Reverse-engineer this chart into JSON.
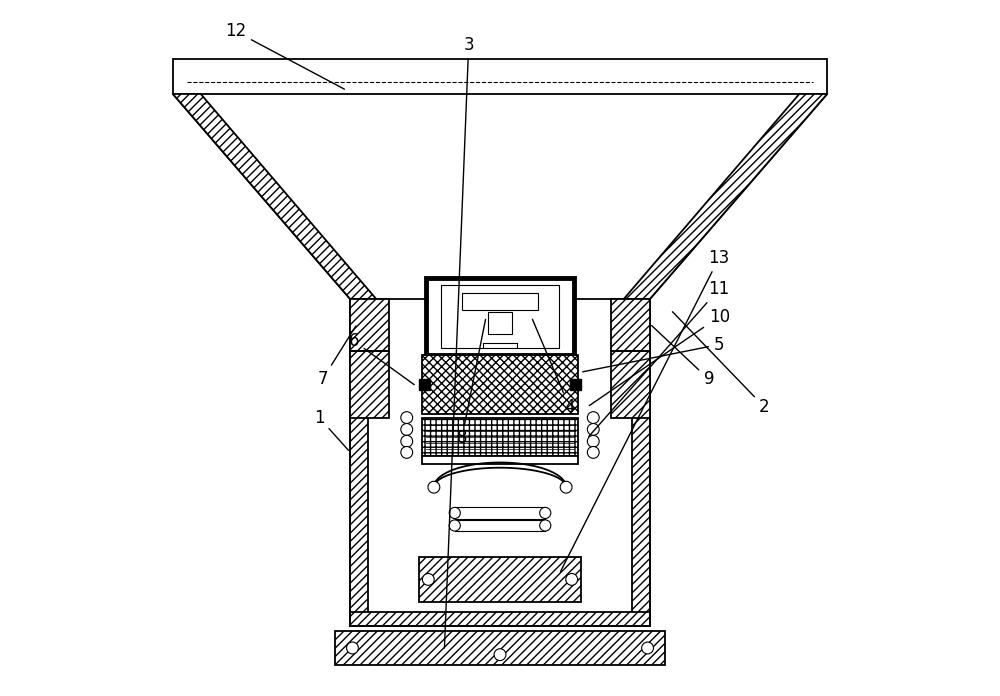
{
  "bg_color": "#ffffff",
  "line_color": "#000000",
  "figsize": [
    10.0,
    6.96
  ],
  "labels_info": {
    "12": [
      0.12,
      0.955,
      0.28,
      0.87
    ],
    "2": [
      0.88,
      0.415,
      0.745,
      0.555
    ],
    "8": [
      0.445,
      0.37,
      0.48,
      0.545
    ],
    "4": [
      0.6,
      0.415,
      0.545,
      0.545
    ],
    "7": [
      0.245,
      0.455,
      0.295,
      0.535
    ],
    "9": [
      0.8,
      0.455,
      0.715,
      0.535
    ],
    "5": [
      0.815,
      0.505,
      0.615,
      0.465
    ],
    "6": [
      0.29,
      0.51,
      0.38,
      0.445
    ],
    "10": [
      0.815,
      0.545,
      0.625,
      0.415
    ],
    "11": [
      0.815,
      0.585,
      0.625,
      0.37
    ],
    "1": [
      0.24,
      0.4,
      0.285,
      0.35
    ],
    "13": [
      0.815,
      0.63,
      0.585,
      0.175
    ],
    "3": [
      0.455,
      0.935,
      0.42,
      0.065
    ]
  }
}
